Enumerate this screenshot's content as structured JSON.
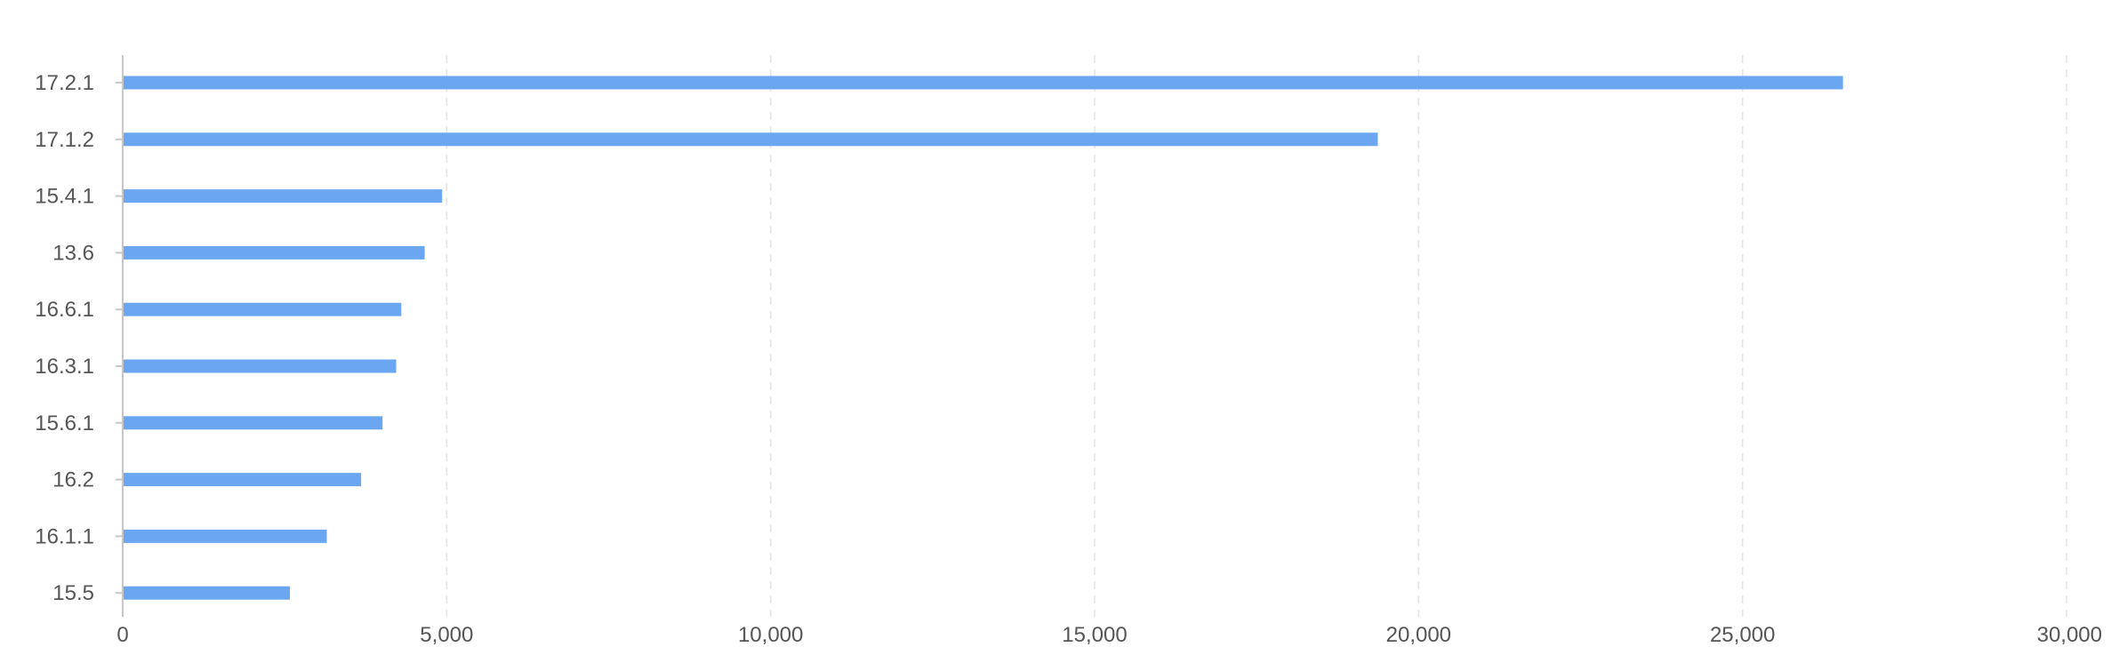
{
  "chart_data": {
    "type": "bar",
    "orientation": "horizontal",
    "categories": [
      "17.2.1",
      "17.1.2",
      "15.4.1",
      "13.6",
      "16.6.1",
      "16.3.1",
      "15.6.1",
      "16.2",
      "16.1.1",
      "15.5"
    ],
    "values": [
      26550,
      19370,
      4930,
      4660,
      4300,
      4220,
      4010,
      3680,
      3150,
      2580
    ],
    "xlim": [
      0,
      30000
    ],
    "x_ticks": [
      0,
      5000,
      10000,
      15000,
      20000,
      25000,
      30000
    ],
    "x_tick_labels": [
      "0",
      "5,000",
      "10,000",
      "15,000",
      "20,000",
      "25,000",
      "30,000"
    ],
    "grid": "vertical-dashed",
    "legend": "none",
    "bar_color": "#6aa7f0"
  }
}
